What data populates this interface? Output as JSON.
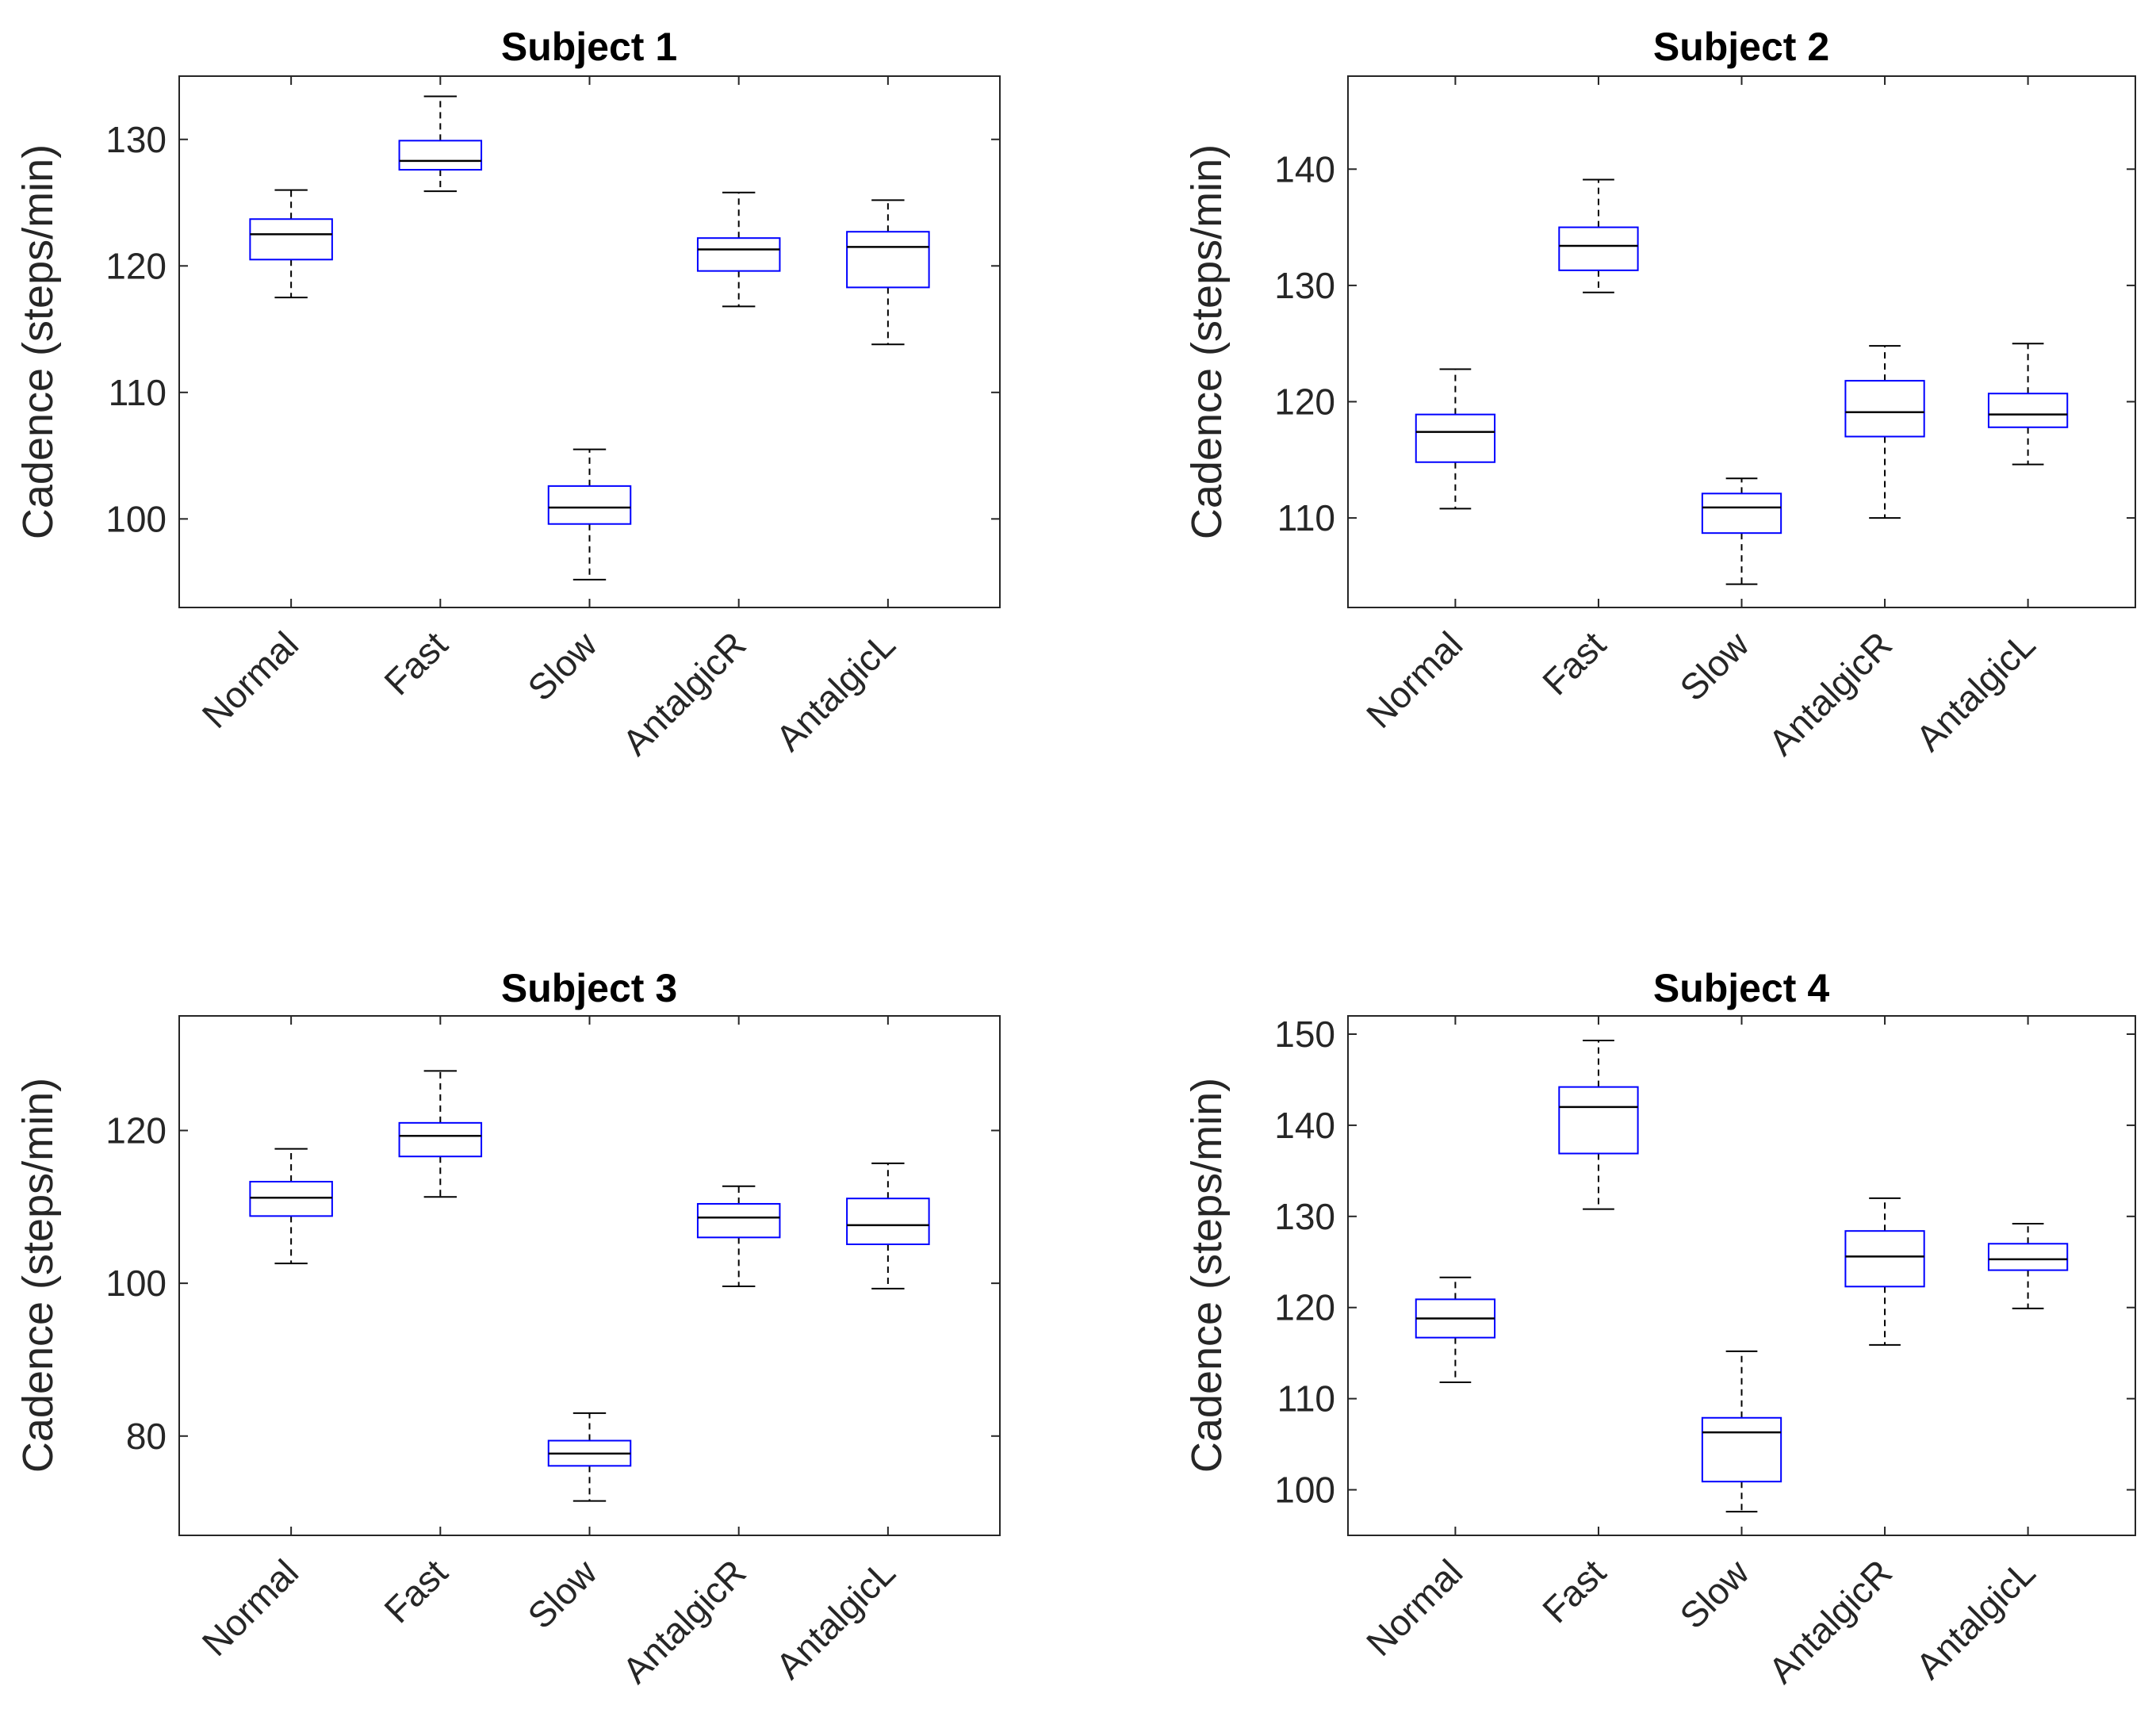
{
  "chart_data": [
    {
      "type": "boxplot",
      "title": "Subject 1",
      "xlabel": "",
      "ylabel": "Cadence (steps/min)",
      "categories": [
        "Normal",
        "Fast",
        "Slow",
        "AntalgicR",
        "AntalgicL"
      ],
      "ylim": [
        93,
        135
      ],
      "yticks": [
        100,
        110,
        120,
        130
      ],
      "ytick_labels": [
        "100",
        "110",
        "120",
        "130"
      ],
      "boxes": [
        {
          "whisker_low": 117.5,
          "q1": 120.5,
          "median": 122.5,
          "q3": 123.7,
          "whisker_high": 126.0
        },
        {
          "whisker_low": 125.9,
          "q1": 127.6,
          "median": 128.3,
          "q3": 129.9,
          "whisker_high": 133.4
        },
        {
          "whisker_low": 95.2,
          "q1": 99.6,
          "median": 100.9,
          "q3": 102.6,
          "whisker_high": 105.5
        },
        {
          "whisker_low": 116.8,
          "q1": 119.6,
          "median": 121.3,
          "q3": 122.2,
          "whisker_high": 125.8
        },
        {
          "whisker_low": 113.8,
          "q1": 118.3,
          "median": 121.5,
          "q3": 122.7,
          "whisker_high": 125.2
        }
      ],
      "colors": {
        "box": "#0000ff",
        "median": "#000000",
        "whisker": "#000000"
      }
    },
    {
      "type": "boxplot",
      "title": "Subject 2",
      "xlabel": "",
      "ylabel": "Cadence (steps/min)",
      "categories": [
        "Normal",
        "Fast",
        "Slow",
        "AntalgicR",
        "AntalgicL"
      ],
      "ylim": [
        102.3,
        148
      ],
      "yticks": [
        110,
        120,
        130,
        140
      ],
      "ytick_labels": [
        "110",
        "120",
        "130",
        "140"
      ],
      "boxes": [
        {
          "whisker_low": 110.8,
          "q1": 114.8,
          "median": 117.4,
          "q3": 118.9,
          "whisker_high": 122.8
        },
        {
          "whisker_low": 129.4,
          "q1": 131.3,
          "median": 133.4,
          "q3": 135.0,
          "whisker_high": 139.1
        },
        {
          "whisker_low": 104.3,
          "q1": 108.7,
          "median": 110.9,
          "q3": 112.1,
          "whisker_high": 113.4
        },
        {
          "whisker_low": 110.0,
          "q1": 117.0,
          "median": 119.1,
          "q3": 121.8,
          "whisker_high": 124.8
        },
        {
          "whisker_low": 114.6,
          "q1": 117.8,
          "median": 118.9,
          "q3": 120.7,
          "whisker_high": 125.0
        }
      ],
      "colors": {
        "box": "#0000ff",
        "median": "#000000",
        "whisker": "#000000"
      }
    },
    {
      "type": "boxplot",
      "title": "Subject 3",
      "xlabel": "",
      "ylabel": "Cadence (steps/min)",
      "categories": [
        "Normal",
        "Fast",
        "Slow",
        "AntalgicR",
        "AntalgicL"
      ],
      "ylim": [
        67,
        135
      ],
      "yticks": [
        80,
        100,
        120
      ],
      "ytick_labels": [
        "80",
        "100",
        "120"
      ],
      "boxes": [
        {
          "whisker_low": 102.6,
          "q1": 108.8,
          "median": 111.2,
          "q3": 113.3,
          "whisker_high": 117.6
        },
        {
          "whisker_low": 111.3,
          "q1": 116.6,
          "median": 119.3,
          "q3": 121.0,
          "whisker_high": 127.8
        },
        {
          "whisker_low": 71.5,
          "q1": 76.1,
          "median": 77.7,
          "q3": 79.4,
          "whisker_high": 83.0
        },
        {
          "whisker_low": 99.6,
          "q1": 106.0,
          "median": 108.6,
          "q3": 110.4,
          "whisker_high": 112.7
        },
        {
          "whisker_low": 99.3,
          "q1": 105.1,
          "median": 107.6,
          "q3": 111.1,
          "whisker_high": 115.7
        }
      ],
      "colors": {
        "box": "#0000ff",
        "median": "#000000",
        "whisker": "#000000"
      }
    },
    {
      "type": "boxplot",
      "title": "Subject 4",
      "xlabel": "",
      "ylabel": "Cadence (steps/min)",
      "categories": [
        "Normal",
        "Fast",
        "Slow",
        "AntalgicR",
        "AntalgicL"
      ],
      "ylim": [
        95,
        152
      ],
      "yticks": [
        100,
        110,
        120,
        130,
        140,
        150
      ],
      "ytick_labels": [
        "100",
        "110",
        "120",
        "130",
        "140",
        "150"
      ],
      "boxes": [
        {
          "whisker_low": 111.8,
          "q1": 116.7,
          "median": 118.8,
          "q3": 120.9,
          "whisker_high": 123.3
        },
        {
          "whisker_low": 130.8,
          "q1": 136.9,
          "median": 142.0,
          "q3": 144.2,
          "whisker_high": 149.3
        },
        {
          "whisker_low": 97.6,
          "q1": 100.9,
          "median": 106.3,
          "q3": 107.9,
          "whisker_high": 115.2
        },
        {
          "whisker_low": 115.9,
          "q1": 122.3,
          "median": 125.6,
          "q3": 128.4,
          "whisker_high": 132.0
        },
        {
          "whisker_low": 119.9,
          "q1": 124.1,
          "median": 125.3,
          "q3": 127.0,
          "whisker_high": 129.2
        }
      ],
      "colors": {
        "box": "#0000ff",
        "median": "#000000",
        "whisker": "#000000"
      }
    }
  ]
}
